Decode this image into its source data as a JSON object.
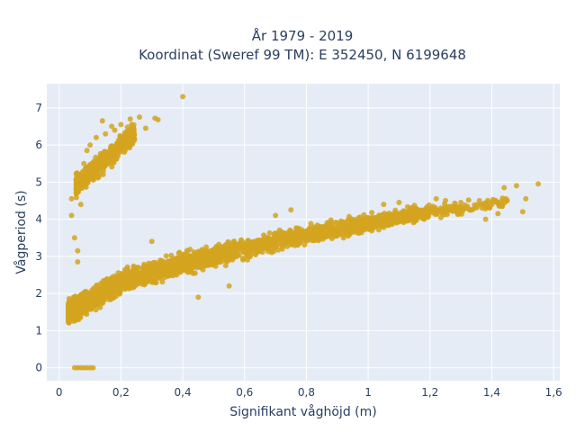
{
  "chart_data": {
    "type": "scatter",
    "title_line1": "År 1979 - 2019",
    "title_line2": "Koordinat (Sweref 99 TM): E 352450, N 6199648",
    "xlabel": "Signifikant våghöjd (m)",
    "ylabel": "Vågperiod (s)",
    "xlim": [
      -0.04,
      1.62
    ],
    "ylim": [
      -0.35,
      7.65
    ],
    "x_ticks": [
      0,
      0.2,
      0.4,
      0.6,
      0.8,
      1,
      1.2,
      1.4,
      1.6
    ],
    "x_tick_labels": [
      "0",
      "0,2",
      "0,4",
      "0,6",
      "0,8",
      "1",
      "1,2",
      "1,4",
      "1,6"
    ],
    "y_ticks": [
      0,
      1,
      2,
      3,
      4,
      5,
      6,
      7
    ],
    "y_tick_labels": [
      "0",
      "1",
      "2",
      "3",
      "4",
      "5",
      "6",
      "7"
    ],
    "marker_color": "#d4a520",
    "series": [
      {
        "clusters": [
          {
            "kind": "main_band",
            "x_range": [
              0.03,
              1.55
            ],
            "y_at_x": [
              [
                0.03,
                1.5
              ],
              [
                0.1,
                1.8
              ],
              [
                0.2,
                2.3
              ],
              [
                0.4,
                2.8
              ],
              [
                0.6,
                3.2
              ],
              [
                0.8,
                3.6
              ],
              [
                1.0,
                3.9
              ],
              [
                1.2,
                4.2
              ],
              [
                1.5,
                4.5
              ]
            ]
          },
          {
            "kind": "upper_cluster",
            "x_range": [
              0.04,
              0.33
            ],
            "y_range": [
              4.3,
              6.8
            ]
          },
          {
            "kind": "zero_period_row",
            "x_range": [
              0.05,
              0.11
            ],
            "y": 0
          }
        ],
        "points": [
          [
            0.05,
            0
          ],
          [
            0.06,
            0
          ],
          [
            0.07,
            0
          ],
          [
            0.08,
            0
          ],
          [
            0.09,
            0
          ],
          [
            0.1,
            0
          ],
          [
            0.11,
            0
          ],
          [
            0.4,
            7.3
          ],
          [
            0.04,
            4.1
          ],
          [
            0.05,
            3.5
          ],
          [
            0.06,
            3.15
          ],
          [
            0.06,
            2.85
          ],
          [
            0.04,
            4.55
          ],
          [
            0.07,
            4.4
          ],
          [
            0.07,
            4.85
          ],
          [
            0.06,
            5.1
          ],
          [
            0.08,
            5.5
          ],
          [
            0.09,
            5.85
          ],
          [
            0.1,
            6.0
          ],
          [
            0.12,
            6.2
          ],
          [
            0.15,
            6.3
          ],
          [
            0.18,
            6.4
          ],
          [
            0.2,
            6.55
          ],
          [
            0.23,
            6.7
          ],
          [
            0.26,
            6.75
          ],
          [
            0.31,
            6.72
          ],
          [
            0.32,
            6.68
          ],
          [
            0.14,
            6.65
          ],
          [
            0.17,
            6.5
          ],
          [
            0.22,
            6.3
          ],
          [
            0.28,
            6.45
          ],
          [
            1.22,
            4.55
          ],
          [
            1.25,
            4.5
          ],
          [
            1.3,
            4.45
          ],
          [
            1.32,
            4.3
          ],
          [
            1.36,
            4.5
          ],
          [
            1.38,
            4.0
          ],
          [
            1.4,
            4.4
          ],
          [
            1.42,
            4.15
          ],
          [
            1.44,
            4.85
          ],
          [
            1.48,
            4.9
          ],
          [
            1.5,
            4.2
          ],
          [
            1.51,
            4.55
          ],
          [
            1.55,
            4.95
          ],
          [
            1.1,
            4.45
          ],
          [
            1.05,
            4.4
          ],
          [
            0.75,
            4.25
          ],
          [
            0.7,
            4.1
          ],
          [
            0.3,
            3.4
          ],
          [
            0.45,
            1.9
          ],
          [
            0.55,
            2.2
          ]
        ]
      }
    ]
  }
}
